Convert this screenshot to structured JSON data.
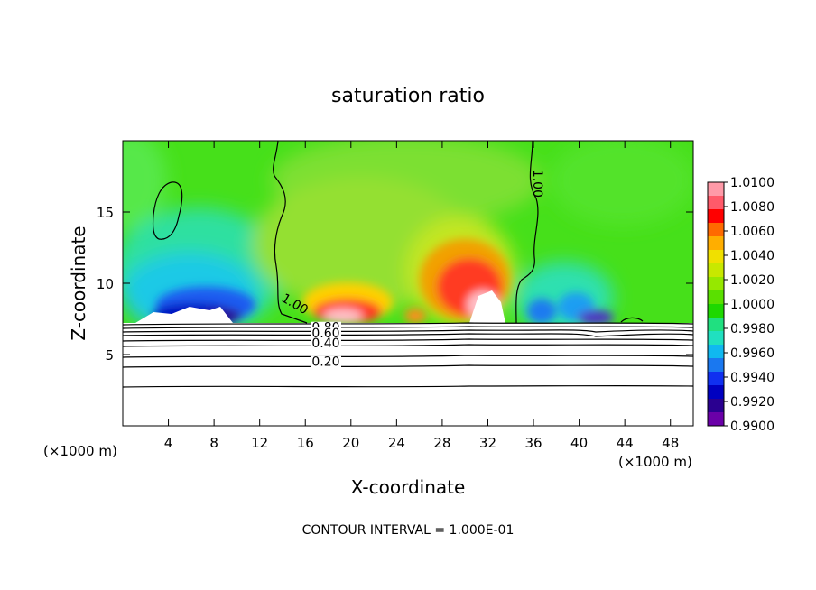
{
  "chart_data": {
    "type": "heatmap",
    "title": "saturation ratio",
    "xlabel": "X-coordinate",
    "ylabel": "Z-coordinate",
    "x_unit_left": "(×1000 m)",
    "x_unit_right": "(×1000 m)",
    "xlim": [
      0,
      50
    ],
    "ylim": [
      0,
      20
    ],
    "x_ticks": [
      4,
      8,
      12,
      16,
      20,
      24,
      28,
      32,
      36,
      40,
      44,
      48
    ],
    "y_ticks": [
      5,
      10,
      15
    ],
    "x_tick_labels": [
      "4",
      "8",
      "12",
      "16",
      "20",
      "24",
      "28",
      "32",
      "36",
      "40",
      "44",
      "48"
    ],
    "y_tick_labels": [
      "5",
      "10",
      "15"
    ],
    "colorbar": {
      "min": 0.99,
      "max": 1.01,
      "ticks": [
        1.01,
        1.008,
        1.006,
        1.004,
        1.002,
        1.0,
        0.998,
        0.996,
        0.994,
        0.992,
        0.99
      ],
      "tick_labels": [
        "1.0100",
        "1.0080",
        "1.0060",
        "1.0040",
        "1.0020",
        "1.0000",
        "0.9980",
        "0.9960",
        "0.9940",
        "0.9920",
        "0.9900"
      ]
    },
    "contour_labels": [
      {
        "text": "1.00",
        "x": 14.9,
        "z": 8.3
      },
      {
        "text": "1.00",
        "x": 36.0,
        "z": 17.0
      },
      {
        "text": "0.80",
        "x": 17.8,
        "z": 6.6
      },
      {
        "text": "0.60",
        "x": 17.8,
        "z": 6.2
      },
      {
        "text": "0.40",
        "x": 17.8,
        "z": 5.5
      },
      {
        "text": "0.20",
        "x": 17.8,
        "z": 4.2
      }
    ],
    "low_level_contours_z": [
      2.8,
      4.2,
      5.0,
      5.5,
      5.9,
      6.2,
      6.5,
      6.8
    ],
    "cloud_base_z": 7.2,
    "footer": "CONTOUR INTERVAL = 1.000E-01"
  }
}
